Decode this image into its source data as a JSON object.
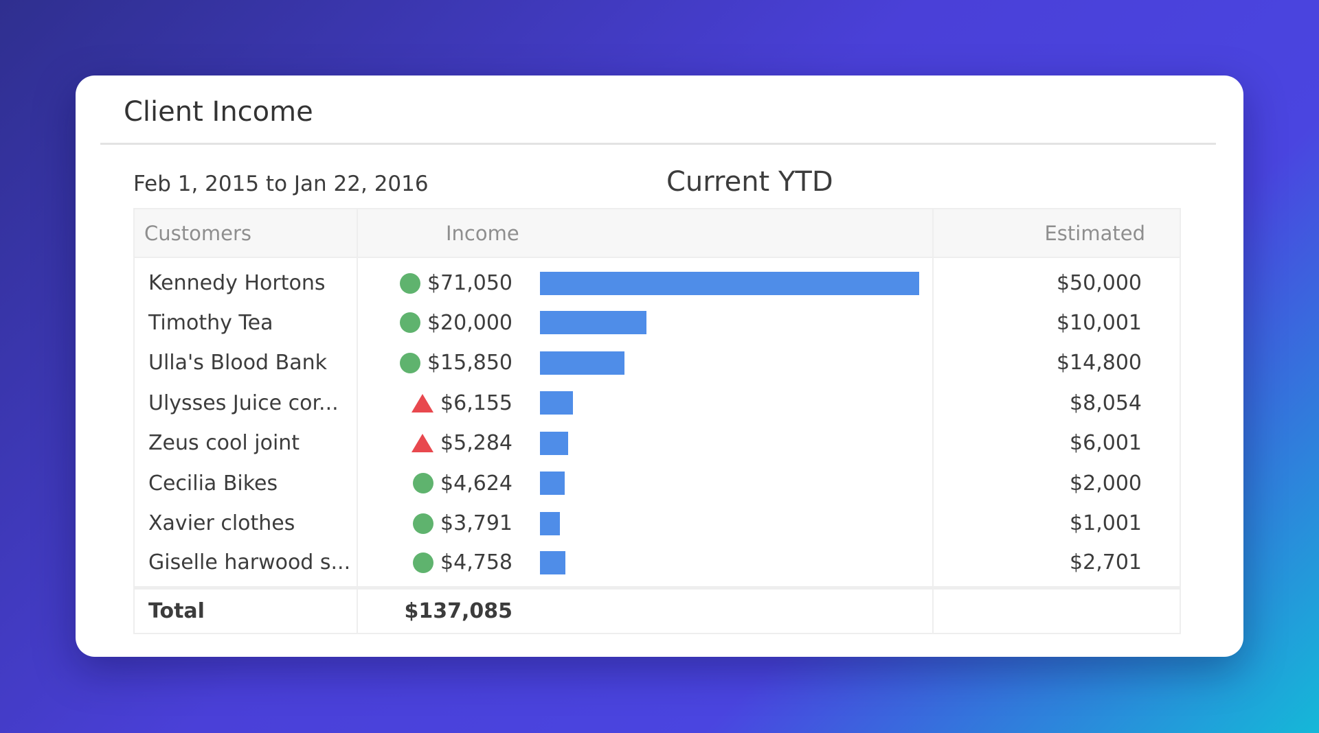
{
  "card": {
    "title": "Client Income",
    "date_range": "Feb 1, 2015 to Jan 22, 2016",
    "heading": "Current YTD"
  },
  "columns": {
    "customers": "Customers",
    "income": "Income",
    "estimated": "Estimated"
  },
  "rows": [
    {
      "customer": "Kennedy Hortons",
      "income": "$71,050",
      "estimated": "$50,000",
      "status": "dot"
    },
    {
      "customer": "Timothy Tea",
      "income": "$20,000",
      "estimated": "$10,001",
      "status": "dot"
    },
    {
      "customer": "Ulla's Blood Bank",
      "income": "$15,850",
      "estimated": "$14,800",
      "status": "dot"
    },
    {
      "customer": "Ulysses Juice cor...",
      "income": "$6,155",
      "estimated": "$8,054",
      "status": "triangle"
    },
    {
      "customer": "Zeus cool joint",
      "income": "$5,284",
      "estimated": "$6,001",
      "status": "triangle"
    },
    {
      "customer": "Cecilia Bikes",
      "income": "$4,624",
      "estimated": "$2,000",
      "status": "dot"
    },
    {
      "customer": "Xavier clothes",
      "income": "$3,791",
      "estimated": "$1,001",
      "status": "dot"
    },
    {
      "customer": "Giselle harwood s...",
      "income": "$4,758",
      "estimated": "$2,701",
      "status": "dot"
    }
  ],
  "total": {
    "label": "Total",
    "income": "$137,085"
  },
  "colors": {
    "bar": "#4f8de8",
    "status_good": "#5fb36e",
    "status_bad": "#e8484e"
  },
  "chart_data": {
    "type": "bar",
    "orientation": "horizontal",
    "title": "Current YTD",
    "categories": [
      "Kennedy Hortons",
      "Timothy Tea",
      "Ulla's Blood Bank",
      "Ulysses Juice cor...",
      "Zeus cool joint",
      "Cecilia Bikes",
      "Xavier clothes",
      "Giselle harwood s..."
    ],
    "series": [
      {
        "name": "Income",
        "values": [
          71050,
          20000,
          15850,
          6155,
          5284,
          4624,
          3791,
          4758
        ]
      }
    ],
    "estimated": [
      50000,
      10001,
      14800,
      8054,
      6001,
      2000,
      1001,
      2701
    ],
    "xlim": [
      0,
      71050
    ],
    "grid": false
  }
}
